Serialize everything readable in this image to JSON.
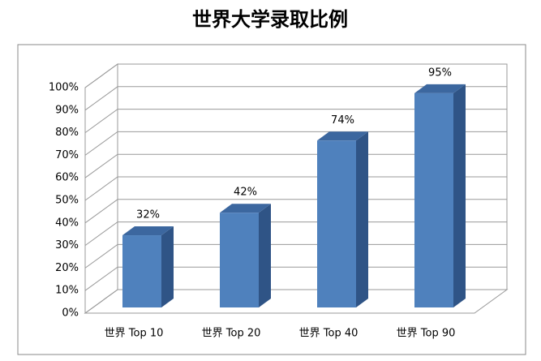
{
  "chart_data": {
    "type": "bar3d",
    "title": "世界大学录取比例",
    "categories": [
      "世界 Top 10",
      "世界 Top 20",
      "世界 Top 40",
      "世界 Top 90"
    ],
    "values": [
      32,
      42,
      74,
      95
    ],
    "value_labels": [
      "32%",
      "42%",
      "74%",
      "95%"
    ],
    "color": "#4f81bd",
    "ylim": [
      0,
      100
    ],
    "yticks": [
      {
        "value": 0,
        "label": "0%"
      },
      {
        "value": 10,
        "label": "10%"
      },
      {
        "value": 20,
        "label": "20%"
      },
      {
        "value": 30,
        "label": "30%"
      },
      {
        "value": 40,
        "label": "40%"
      },
      {
        "value": 50,
        "label": "50%"
      },
      {
        "value": 60,
        "label": "60%"
      },
      {
        "value": 70,
        "label": "70%"
      },
      {
        "value": 80,
        "label": "80%"
      },
      {
        "value": 90,
        "label": "90%"
      },
      {
        "value": 100,
        "label": "100%"
      }
    ],
    "grid": true
  }
}
